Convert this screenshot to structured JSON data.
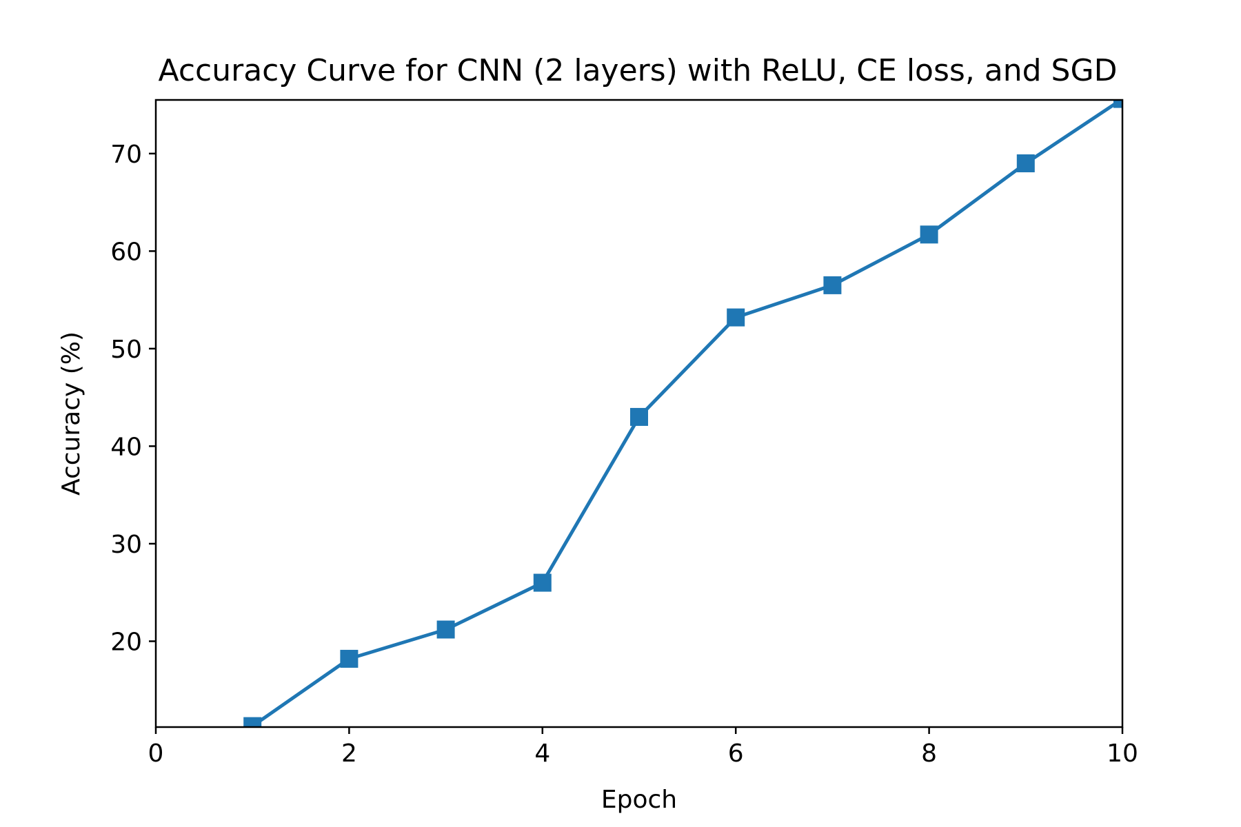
{
  "chart_data": {
    "type": "line",
    "title": "Accuracy Curve for CNN (2 layers) with ReLU, CE loss, and SGD",
    "xlabel": "Epoch",
    "ylabel": "Accuracy (%)",
    "xlim": [
      0,
      10
    ],
    "ylim": [
      11.2,
      75.5
    ],
    "xticks": [
      0,
      2,
      4,
      6,
      8,
      10
    ],
    "yticks": [
      20,
      30,
      40,
      50,
      60,
      70
    ],
    "grid": false,
    "marker": "square",
    "color": "#1f77b4",
    "series": [
      {
        "x": [
          1,
          2,
          3,
          4,
          5,
          6,
          7,
          8,
          9,
          10
        ],
        "values": [
          11.3,
          18.2,
          21.2,
          26.0,
          43.0,
          53.2,
          56.5,
          61.7,
          69.0,
          75.6
        ]
      }
    ]
  }
}
